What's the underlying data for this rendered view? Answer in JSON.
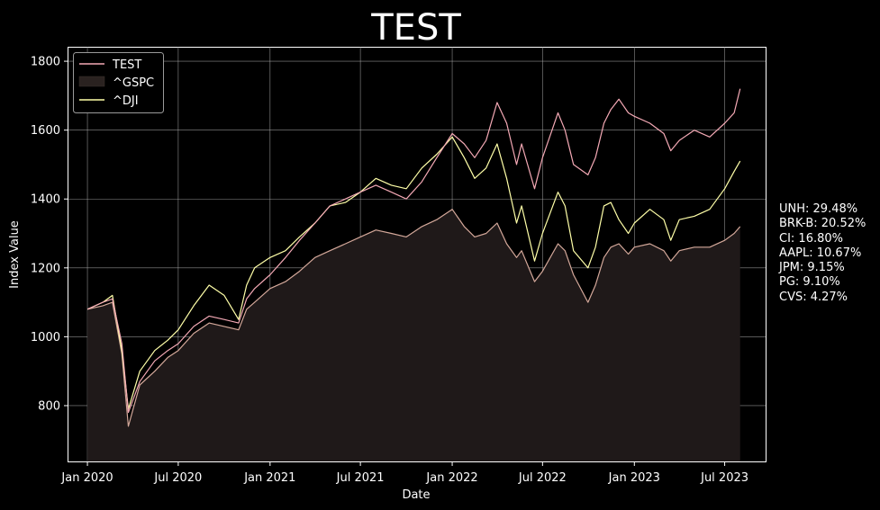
{
  "chart_data": {
    "type": "line",
    "title": "TEST",
    "xlabel": "Date",
    "ylabel": "Index Value",
    "x_range": [
      "2019-11-24",
      "2023-09-21"
    ],
    "ylim": [
      638,
      1842
    ],
    "grid": true,
    "legend_position": "top-left",
    "x_ticks": [
      {
        "date": "2020-01-01",
        "label": "Jan 2020"
      },
      {
        "date": "2020-07-01",
        "label": "Jul 2020"
      },
      {
        "date": "2021-01-01",
        "label": "Jan 2021"
      },
      {
        "date": "2021-07-01",
        "label": "Jul 2021"
      },
      {
        "date": "2022-01-01",
        "label": "Jan 2022"
      },
      {
        "date": "2022-07-01",
        "label": "Jul 2022"
      },
      {
        "date": "2023-01-01",
        "label": "Jan 2023"
      },
      {
        "date": "2023-07-01",
        "label": "Jul 2023"
      }
    ],
    "y_ticks": [
      800,
      1000,
      1200,
      1400,
      1600,
      1800
    ],
    "series": [
      {
        "name": "TEST",
        "style": "line",
        "color": "#f4a9b5",
        "x": [
          "2020-01-01",
          "2020-02-01",
          "2020-02-20",
          "2020-03-10",
          "2020-03-23",
          "2020-04-15",
          "2020-05-15",
          "2020-06-10",
          "2020-07-01",
          "2020-08-01",
          "2020-09-01",
          "2020-10-01",
          "2020-10-30",
          "2020-11-15",
          "2020-12-01",
          "2021-01-01",
          "2021-02-01",
          "2021-03-01",
          "2021-04-01",
          "2021-05-01",
          "2021-06-01",
          "2021-07-01",
          "2021-08-01",
          "2021-09-01",
          "2021-10-01",
          "2021-11-01",
          "2021-12-01",
          "2022-01-01",
          "2022-01-25",
          "2022-02-15",
          "2022-03-10",
          "2022-04-01",
          "2022-04-20",
          "2022-05-10",
          "2022-05-20",
          "2022-06-15",
          "2022-07-01",
          "2022-08-01",
          "2022-08-15",
          "2022-09-01",
          "2022-09-30",
          "2022-10-15",
          "2022-11-01",
          "2022-11-15",
          "2022-12-01",
          "2022-12-20",
          "2023-01-01",
          "2023-02-01",
          "2023-03-01",
          "2023-03-15",
          "2023-04-01",
          "2023-05-01",
          "2023-06-01",
          "2023-07-01",
          "2023-07-20",
          "2023-08-01"
        ],
        "values": [
          1080,
          1100,
          1110,
          980,
          780,
          870,
          930,
          960,
          980,
          1030,
          1060,
          1050,
          1040,
          1110,
          1140,
          1180,
          1230,
          1280,
          1330,
          1380,
          1400,
          1420,
          1440,
          1420,
          1400,
          1450,
          1520,
          1590,
          1560,
          1520,
          1570,
          1680,
          1620,
          1500,
          1560,
          1430,
          1520,
          1650,
          1600,
          1500,
          1470,
          1520,
          1620,
          1660,
          1690,
          1650,
          1640,
          1620,
          1590,
          1540,
          1570,
          1600,
          1580,
          1620,
          1650,
          1720
        ]
      },
      {
        "name": "^GSPC",
        "style": "area",
        "color": "#d4a89a",
        "x": [
          "2020-01-01",
          "2020-02-01",
          "2020-02-20",
          "2020-03-10",
          "2020-03-23",
          "2020-04-15",
          "2020-05-15",
          "2020-06-10",
          "2020-07-01",
          "2020-08-01",
          "2020-09-01",
          "2020-10-01",
          "2020-10-30",
          "2020-11-15",
          "2020-12-01",
          "2021-01-01",
          "2021-02-01",
          "2021-03-01",
          "2021-04-01",
          "2021-05-01",
          "2021-06-01",
          "2021-07-01",
          "2021-08-01",
          "2021-09-01",
          "2021-10-01",
          "2021-11-01",
          "2021-12-01",
          "2022-01-01",
          "2022-01-25",
          "2022-02-15",
          "2022-03-10",
          "2022-04-01",
          "2022-04-20",
          "2022-05-10",
          "2022-05-20",
          "2022-06-15",
          "2022-07-01",
          "2022-08-01",
          "2022-08-15",
          "2022-09-01",
          "2022-09-30",
          "2022-10-15",
          "2022-11-01",
          "2022-11-15",
          "2022-12-01",
          "2022-12-20",
          "2023-01-01",
          "2023-02-01",
          "2023-03-01",
          "2023-03-15",
          "2023-04-01",
          "2023-05-01",
          "2023-06-01",
          "2023-07-01",
          "2023-07-20",
          "2023-08-01"
        ],
        "values": [
          1080,
          1090,
          1100,
          950,
          740,
          860,
          900,
          940,
          960,
          1010,
          1040,
          1030,
          1020,
          1080,
          1100,
          1140,
          1160,
          1190,
          1230,
          1250,
          1270,
          1290,
          1310,
          1300,
          1290,
          1320,
          1340,
          1370,
          1320,
          1290,
          1300,
          1330,
          1270,
          1230,
          1250,
          1160,
          1190,
          1270,
          1250,
          1180,
          1100,
          1150,
          1230,
          1260,
          1270,
          1240,
          1260,
          1270,
          1250,
          1220,
          1250,
          1260,
          1260,
          1280,
          1300,
          1320
        ]
      },
      {
        "name": "^DJI",
        "style": "line",
        "color": "#ffffa8",
        "x": [
          "2020-01-01",
          "2020-02-01",
          "2020-02-20",
          "2020-03-10",
          "2020-03-23",
          "2020-04-15",
          "2020-05-15",
          "2020-06-10",
          "2020-07-01",
          "2020-08-01",
          "2020-09-01",
          "2020-10-01",
          "2020-10-30",
          "2020-11-15",
          "2020-12-01",
          "2021-01-01",
          "2021-02-01",
          "2021-03-01",
          "2021-04-01",
          "2021-05-01",
          "2021-06-01",
          "2021-07-01",
          "2021-08-01",
          "2021-09-01",
          "2021-10-01",
          "2021-11-01",
          "2021-12-01",
          "2022-01-01",
          "2022-01-25",
          "2022-02-15",
          "2022-03-10",
          "2022-04-01",
          "2022-04-20",
          "2022-05-10",
          "2022-05-20",
          "2022-06-15",
          "2022-07-01",
          "2022-08-01",
          "2022-08-15",
          "2022-09-01",
          "2022-09-30",
          "2022-10-15",
          "2022-11-01",
          "2022-11-15",
          "2022-12-01",
          "2022-12-20",
          "2023-01-01",
          "2023-02-01",
          "2023-03-01",
          "2023-03-15",
          "2023-04-01",
          "2023-05-01",
          "2023-06-01",
          "2023-07-01",
          "2023-07-20",
          "2023-08-01"
        ],
        "values": [
          1080,
          1100,
          1120,
          960,
          790,
          900,
          960,
          990,
          1020,
          1090,
          1150,
          1120,
          1050,
          1150,
          1200,
          1230,
          1250,
          1290,
          1330,
          1380,
          1390,
          1420,
          1460,
          1440,
          1430,
          1490,
          1530,
          1580,
          1520,
          1460,
          1490,
          1560,
          1460,
          1330,
          1380,
          1220,
          1300,
          1420,
          1380,
          1250,
          1200,
          1260,
          1380,
          1390,
          1340,
          1300,
          1330,
          1370,
          1340,
          1280,
          1340,
          1350,
          1370,
          1430,
          1480,
          1510
        ]
      }
    ],
    "annotations": [
      "UNH: 29.48%",
      "BRK-B: 20.52%",
      "CI: 16.80%",
      "AAPL: 10.67%",
      "JPM: 9.15%",
      "PG: 9.10%",
      "CVS: 4.27%"
    ]
  }
}
